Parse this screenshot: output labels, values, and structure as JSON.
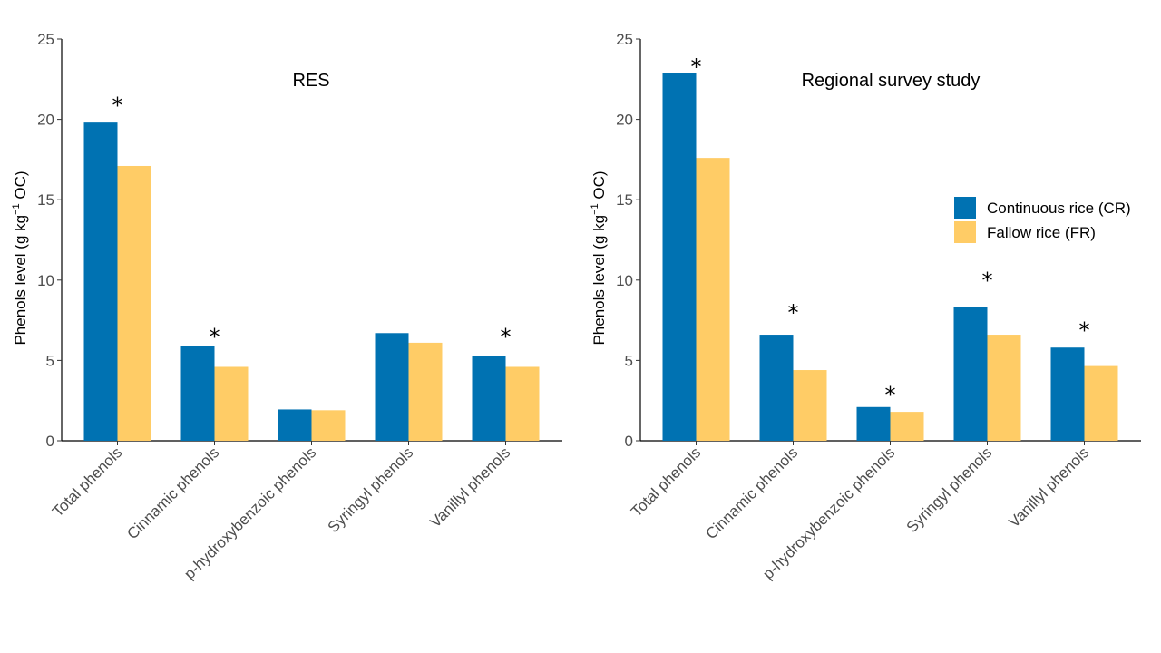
{
  "chart_data": [
    {
      "type": "bar",
      "title": "RES",
      "ylabel": "Phenols level (g kg⁻¹ OC)",
      "ylabel_parts": [
        "Phenols level (g kg",
        "−1",
        " OC)"
      ],
      "ylim": [
        0,
        25
      ],
      "yticks": [
        "0",
        "5",
        "10",
        "15",
        "20",
        "25"
      ],
      "categories": [
        "Total phenols",
        "Cinnamic phenols",
        "p-hydroxybenzoic phenols",
        "Syringyl phenols",
        "Vanillyl phenols"
      ],
      "series": [
        {
          "name": "Continuous rice (CR)",
          "color": "#0072b2",
          "values": [
            19.8,
            5.9,
            1.95,
            6.7,
            5.3
          ]
        },
        {
          "name": "Fallow rice (FR)",
          "color": "#ffcc66",
          "values": [
            17.1,
            4.6,
            1.9,
            6.1,
            4.6
          ]
        }
      ],
      "significance": [
        "*",
        "*",
        "",
        "",
        "*"
      ],
      "significance_y": [
        21.2,
        6.8,
        0,
        0,
        6.8
      ]
    },
    {
      "type": "bar",
      "title": "Regional survey study",
      "ylabel": "Phenols level (g kg⁻¹ OC)",
      "ylabel_parts": [
        "Phenols level (g kg",
        "−1",
        " OC)"
      ],
      "ylim": [
        0,
        25
      ],
      "yticks": [
        "0",
        "5",
        "10",
        "15",
        "20",
        "25"
      ],
      "categories": [
        "Total phenols",
        "Cinnamic phenols",
        "p-hydroxybenzoic phenols",
        "Syringyl phenols",
        "Vanillyl phenols"
      ],
      "series": [
        {
          "name": "Continuous rice (CR)",
          "color": "#0072b2",
          "values": [
            22.9,
            6.6,
            2.1,
            8.3,
            5.8
          ]
        },
        {
          "name": "Fallow rice (FR)",
          "color": "#ffcc66",
          "values": [
            17.6,
            4.4,
            1.8,
            6.6,
            4.65
          ]
        }
      ],
      "significance": [
        "*",
        "*",
        "*",
        "*",
        "*"
      ],
      "significance_y": [
        23.6,
        8.3,
        3.2,
        10.3,
        7.2
      ]
    }
  ],
  "legend": {
    "placement": "right",
    "items": [
      {
        "label": "Continuous rice (CR)",
        "color": "#0072b2"
      },
      {
        "label": "Fallow rice (FR)",
        "color": "#ffcc66"
      }
    ]
  }
}
